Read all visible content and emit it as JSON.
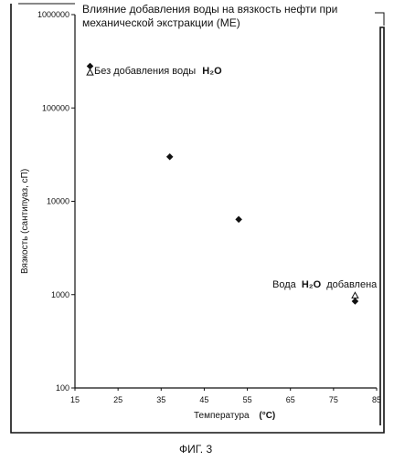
{
  "chart_data": {
    "type": "scatter",
    "title": "Влияние добавления воды на вязкость нефти при механической экстракции (МЕ)",
    "title_lines": [
      "Влияние добавления воды на вязкость нефти при",
      "механической экстракции (МЕ)"
    ],
    "xlabel": "Температура",
    "xlabel_unit": "(°С)",
    "ylabel": "Вязкость (сантипуаз, сП)",
    "xlim": [
      15,
      85
    ],
    "ylim": [
      100,
      1000000
    ],
    "y_scale": "log",
    "grid": false,
    "x_ticks": [
      "15",
      "25",
      "35",
      "45",
      "55",
      "65",
      "75",
      "85"
    ],
    "y_ticks": [
      "100",
      "1000",
      "10000",
      "100000",
      "1000000"
    ],
    "series": [
      {
        "name": "Без добавления воды H₂O",
        "marker": "filled-diamond",
        "points": [
          {
            "x": 18.5,
            "y": 280000
          },
          {
            "x": 37,
            "y": 30000
          },
          {
            "x": 53,
            "y": 6400
          },
          {
            "x": 80,
            "y": 850
          }
        ]
      },
      {
        "name": "Вода H₂O добавлена",
        "marker": "open-triangle",
        "points": [
          {
            "x": 18.5,
            "y": 240000
          },
          {
            "x": 80,
            "y": 980
          }
        ]
      }
    ],
    "annotations": [
      {
        "text": "Без добавления воды",
        "formula": "H₂O"
      },
      {
        "text": "Вода",
        "formula": "H₂O",
        "suffix": "добавлена"
      }
    ]
  },
  "figure_caption": "ФИГ. 3"
}
